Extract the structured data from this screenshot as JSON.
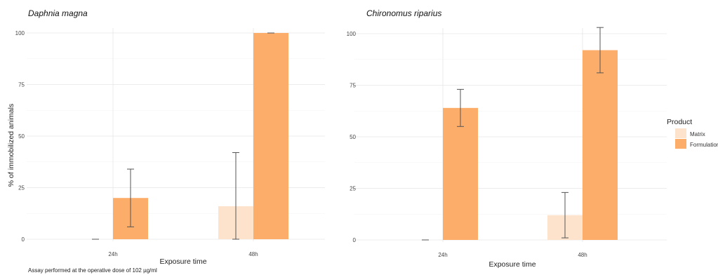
{
  "shared": {
    "ylabel": "% of immobilized animals",
    "xlabel": "Exposure time",
    "caption": "Assay performed at the operative dose of 102 µg/ml",
    "legend": {
      "title": "Product",
      "position": "right",
      "items": [
        {
          "name": "Matrix",
          "color": "#fde3cb"
        },
        {
          "name": "Formulation",
          "color": "#fdad6a"
        }
      ]
    },
    "grid": true
  },
  "chart_data": [
    {
      "type": "bar",
      "title": "Daphnia magna",
      "categories": [
        "24h",
        "48h"
      ],
      "ylim": [
        0,
        100
      ],
      "yticks": [
        0,
        25,
        50,
        75,
        100
      ],
      "series": [
        {
          "name": "Matrix",
          "values": [
            0,
            16
          ],
          "err_low": [
            0,
            0
          ],
          "err_high": [
            0,
            42
          ]
        },
        {
          "name": "Formulation",
          "values": [
            20,
            100
          ],
          "err_low": [
            6,
            100
          ],
          "err_high": [
            34,
            100
          ]
        }
      ]
    },
    {
      "type": "bar",
      "title": "Chironomus riparius",
      "categories": [
        "24h",
        "48h"
      ],
      "ylim": [
        0,
        100
      ],
      "yticks": [
        0,
        25,
        50,
        75,
        100
      ],
      "series": [
        {
          "name": "Matrix",
          "values": [
            0,
            12
          ],
          "err_low": [
            0,
            1
          ],
          "err_high": [
            0,
            23
          ]
        },
        {
          "name": "Formulation",
          "values": [
            64,
            92
          ],
          "err_low": [
            55,
            81
          ],
          "err_high": [
            73,
            103
          ]
        }
      ]
    }
  ]
}
